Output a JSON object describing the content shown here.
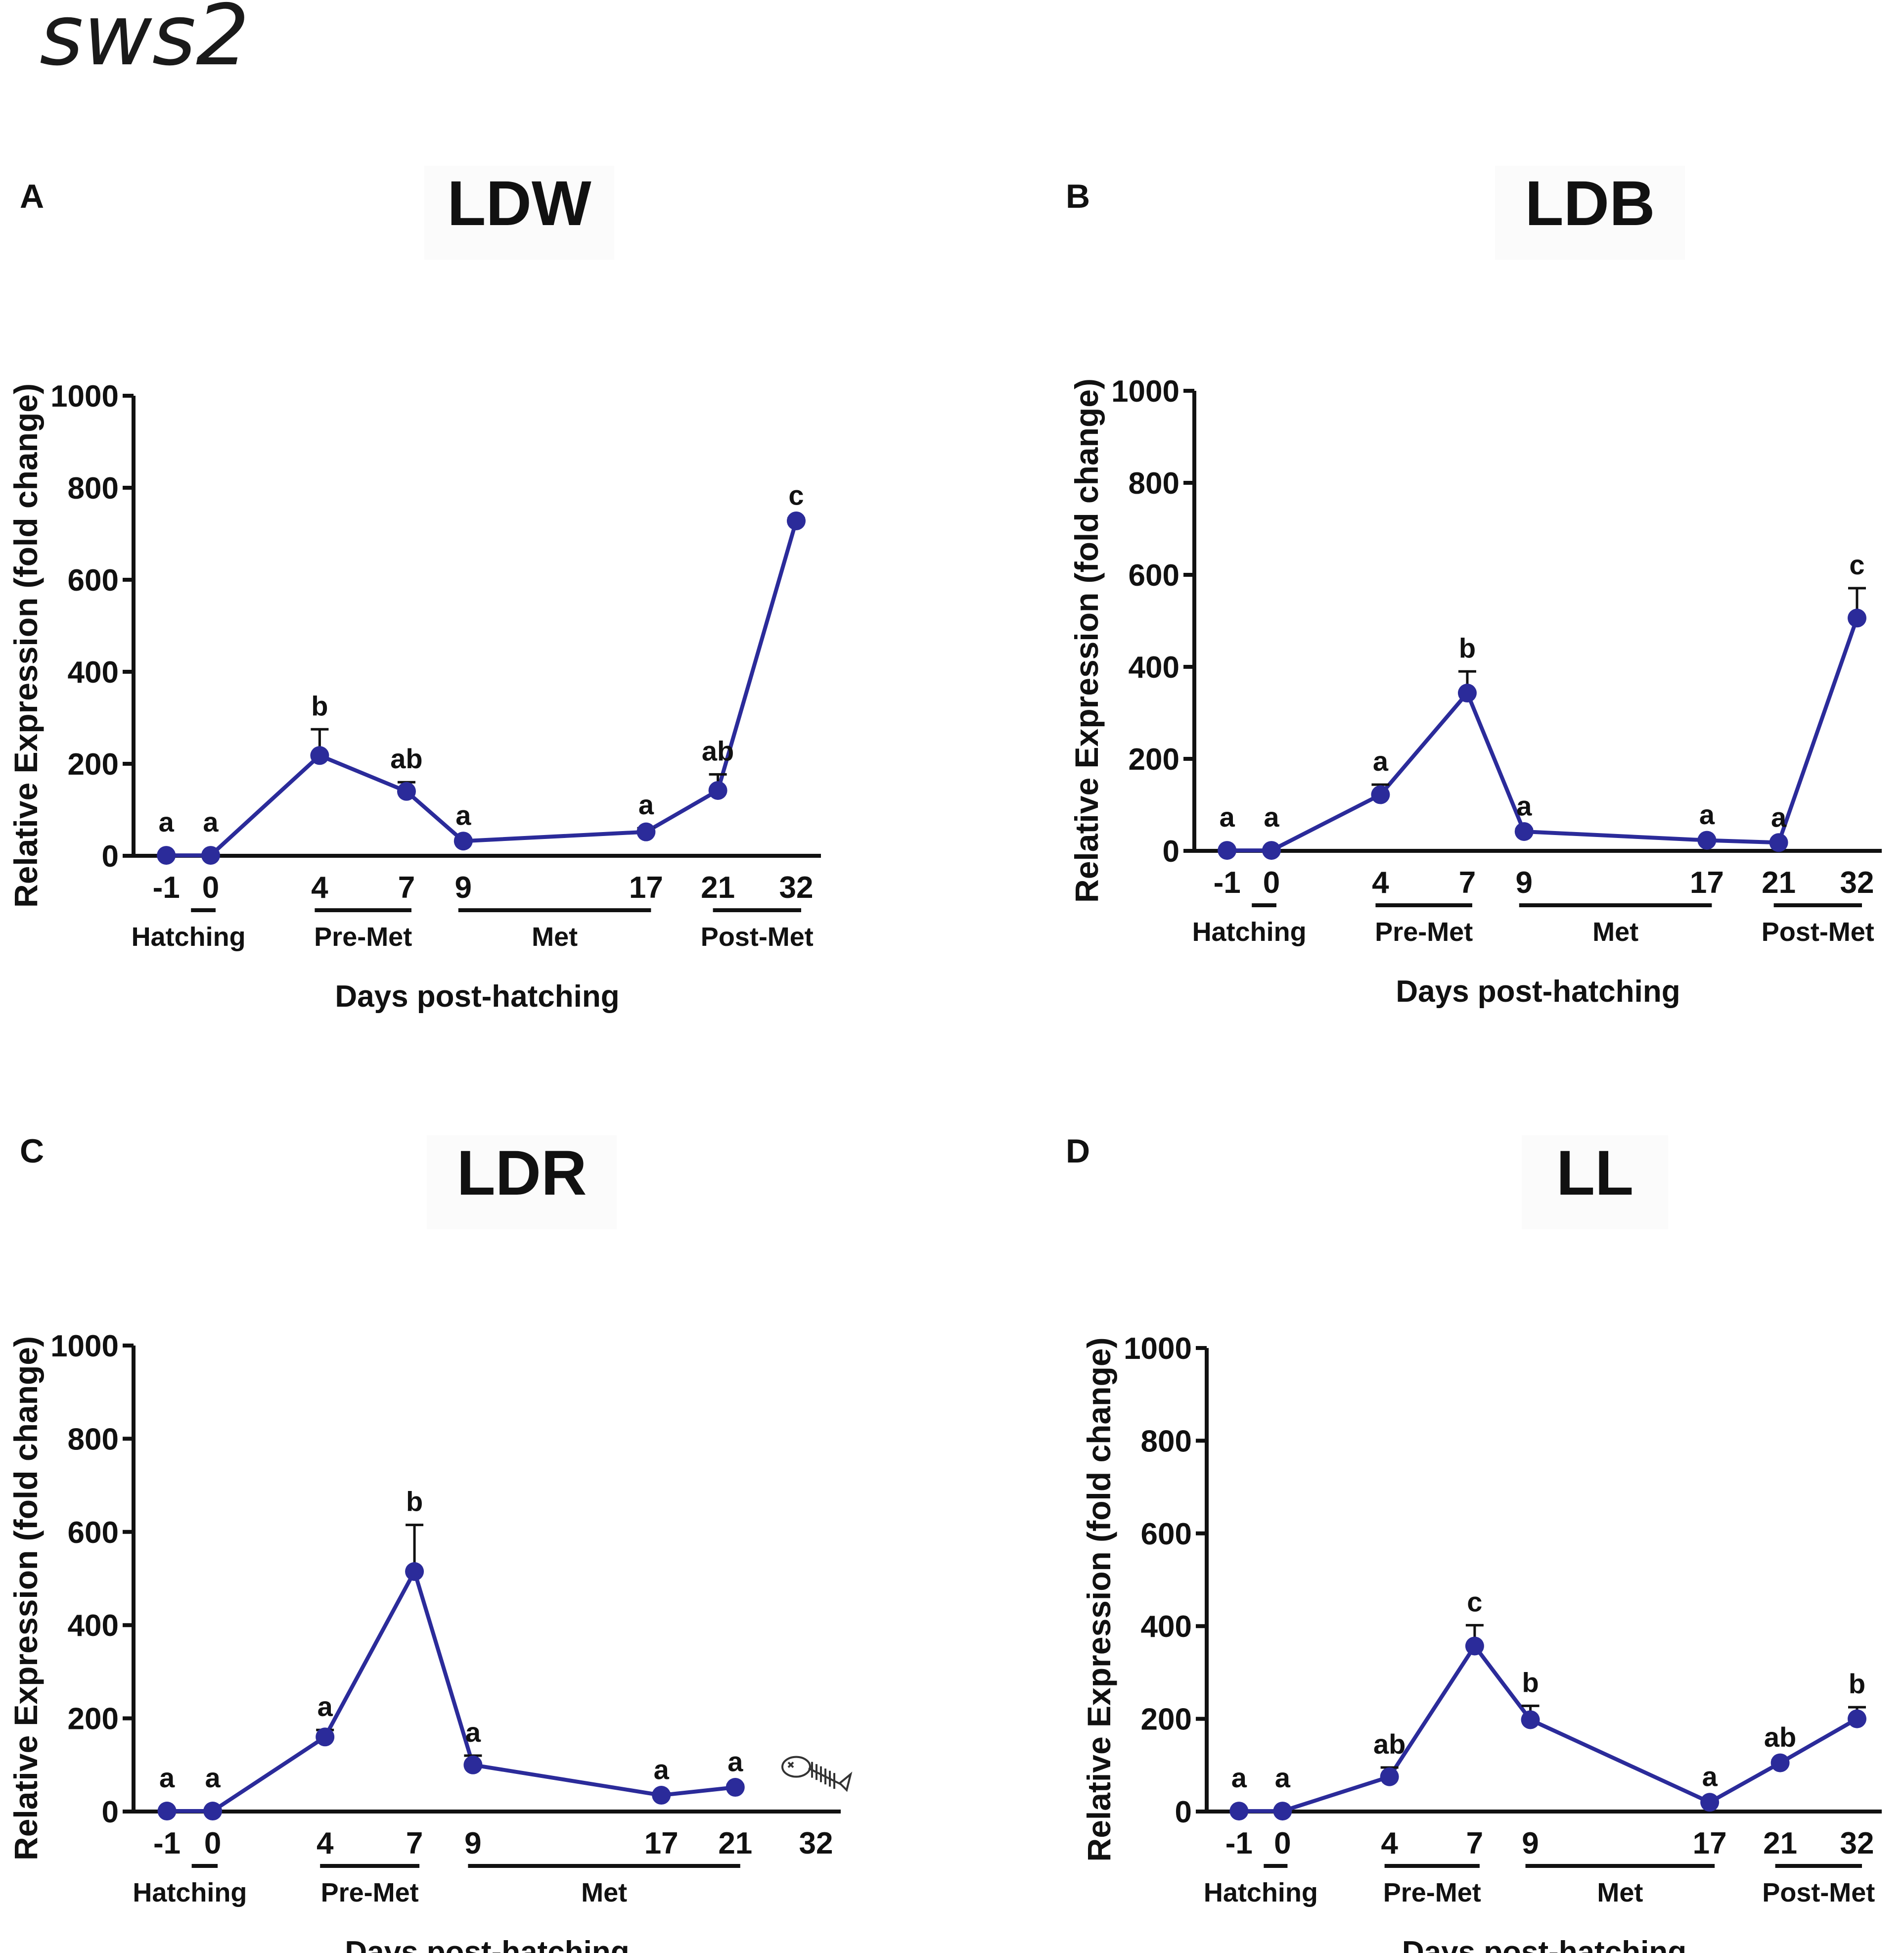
{
  "figure_title": "sws2",
  "chart_data": [
    {
      "panel": "A",
      "type": "line",
      "title": "LDW",
      "xlabel": "Days post-hatching",
      "ylabel": "Relative Expression (fold change)",
      "ylim": [
        0,
        1000
      ],
      "yticks": [
        "0",
        "200",
        "400",
        "600",
        "800",
        "1000"
      ],
      "x_tick_labels": [
        "-1",
        "0",
        "4",
        "7",
        "9",
        "17",
        "21",
        "32"
      ],
      "stages": [
        {
          "label": "Hatching",
          "from": "-1",
          "to": "0"
        },
        {
          "label": "Pre-Met",
          "from": "4",
          "to": "7"
        },
        {
          "label": "Met",
          "from": "9",
          "to": "17"
        },
        {
          "label": "Post-Met",
          "from": "21",
          "to": "32"
        }
      ],
      "x": [
        "-1",
        "0",
        "4",
        "7",
        "9",
        "17",
        "21",
        "32"
      ],
      "values": [
        1,
        1,
        218,
        140,
        32,
        52,
        142,
        728
      ],
      "errors": [
        0,
        0,
        57,
        20,
        5,
        8,
        35,
        5
      ],
      "significance": [
        "a",
        "a",
        "b",
        "ab",
        "a",
        "a",
        "ab",
        "c"
      ]
    },
    {
      "panel": "B",
      "type": "line",
      "title": "LDB",
      "xlabel": "Days post-hatching",
      "ylabel": "Relative Expression (fold change)",
      "ylim": [
        0,
        1000
      ],
      "yticks": [
        "0",
        "200",
        "400",
        "600",
        "800",
        "1000"
      ],
      "x_tick_labels": [
        "-1",
        "0",
        "4",
        "7",
        "9",
        "17",
        "21",
        "32"
      ],
      "stages": [
        {
          "label": "Hatching",
          "from": "-1",
          "to": "0"
        },
        {
          "label": "Pre-Met",
          "from": "4",
          "to": "7"
        },
        {
          "label": "Met",
          "from": "9",
          "to": "17"
        },
        {
          "label": "Post-Met",
          "from": "21",
          "to": "32"
        }
      ],
      "x": [
        "-1",
        "0",
        "4",
        "7",
        "9",
        "17",
        "21",
        "32"
      ],
      "values": [
        1,
        1,
        122,
        343,
        42,
        23,
        18,
        506
      ],
      "errors": [
        0,
        0,
        22,
        47,
        5,
        5,
        4,
        65
      ],
      "significance": [
        "a",
        "a",
        "a",
        "b",
        "a",
        "a",
        "a",
        "c"
      ]
    },
    {
      "panel": "C",
      "type": "line",
      "title": "LDR",
      "xlabel": "Days post-hatching",
      "ylabel": "Relative Expression (fold change)",
      "ylim": [
        0,
        1000
      ],
      "yticks": [
        "0",
        "200",
        "400",
        "600",
        "800",
        "1000"
      ],
      "x_tick_labels": [
        "-1",
        "0",
        "4",
        "7",
        "9",
        "17",
        "21",
        "32"
      ],
      "stages": [
        {
          "label": "Hatching",
          "from": "-1",
          "to": "0"
        },
        {
          "label": "Pre-Met",
          "from": "4",
          "to": "7"
        },
        {
          "label": "Met",
          "from": "9",
          "to": "21"
        }
      ],
      "x": [
        "-1",
        "0",
        "4",
        "7",
        "9",
        "17",
        "21"
      ],
      "values": [
        1,
        1,
        160,
        515,
        100,
        35,
        52
      ],
      "errors": [
        0,
        0,
        15,
        100,
        20,
        5,
        5
      ],
      "significance": [
        "a",
        "a",
        "a",
        "b",
        "a",
        "a",
        "a"
      ],
      "annotation_icon": "dead-fish-icon"
    },
    {
      "panel": "D",
      "type": "line",
      "title": "LL",
      "xlabel": "Days post-hatching",
      "ylabel": "Relative Expression (fold change)",
      "ylim": [
        0,
        1000
      ],
      "yticks": [
        "0",
        "200",
        "400",
        "600",
        "800",
        "1000"
      ],
      "x_tick_labels": [
        "-1",
        "0",
        "4",
        "7",
        "9",
        "17",
        "21",
        "32"
      ],
      "stages": [
        {
          "label": "Hatching",
          "from": "-1",
          "to": "0"
        },
        {
          "label": "Pre-Met",
          "from": "4",
          "to": "7"
        },
        {
          "label": "Met",
          "from": "9",
          "to": "17"
        },
        {
          "label": "Post-Met",
          "from": "21",
          "to": "32"
        }
      ],
      "x": [
        "-1",
        "0",
        "4",
        "7",
        "9",
        "17",
        "21",
        "32"
      ],
      "values": [
        1,
        1,
        75,
        357,
        198,
        20,
        105,
        200
      ],
      "errors": [
        0,
        0,
        20,
        45,
        30,
        5,
        5,
        25
      ],
      "significance": [
        "a",
        "a",
        "ab",
        "c",
        "b",
        "a",
        "ab",
        "b"
      ]
    }
  ],
  "colors": {
    "series": "#2b2b9a",
    "axis": "#111111"
  }
}
